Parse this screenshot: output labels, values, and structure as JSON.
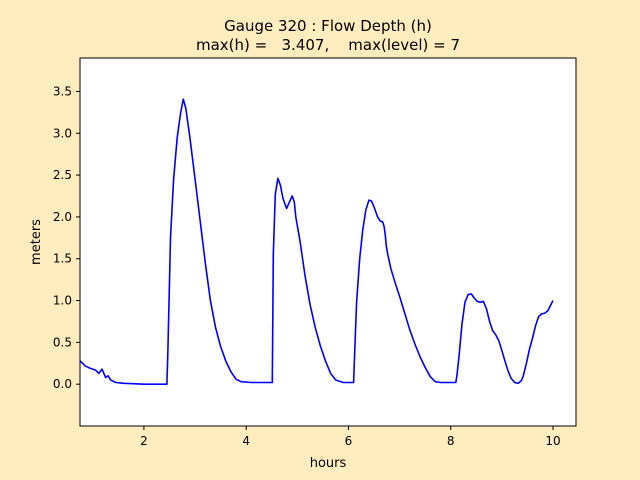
{
  "figure": {
    "title_line1": "Gauge 320 : Flow Depth (h)",
    "title_line2": "max(h) =   3.407,    max(level) = 7"
  },
  "colors": {
    "figure_background": "#ffedc0",
    "axes_background": "#ffffff",
    "line": "#0000ff"
  },
  "chart_data": {
    "type": "line",
    "title": "Gauge 320 : Flow Depth (h)\nmax(h) =   3.407,    max(level) = 7",
    "xlabel": "hours",
    "ylabel": "meters",
    "xlim": [
      0.75,
      10.45
    ],
    "ylim": [
      -0.5,
      3.9
    ],
    "xticks": [
      2,
      4,
      6,
      8,
      10
    ],
    "xtick_labels": [
      "2",
      "4",
      "6",
      "8",
      "10"
    ],
    "yticks": [
      0.0,
      0.5,
      1.0,
      1.5,
      2.0,
      2.5,
      3.0,
      3.5
    ],
    "ytick_labels": [
      "0.0",
      "0.5",
      "1.0",
      "1.5",
      "2.0",
      "2.5",
      "3.0",
      "3.5"
    ],
    "grid": false,
    "series": [
      {
        "color": "#0000ff",
        "x": [
          0.75,
          0.85,
          0.95,
          1.05,
          1.12,
          1.18,
          1.25,
          1.3,
          1.35,
          1.45,
          1.6,
          2.0,
          2.45,
          2.47,
          2.52,
          2.58,
          2.65,
          2.72,
          2.77,
          2.82,
          2.9,
          3.0,
          3.1,
          3.2,
          3.3,
          3.4,
          3.5,
          3.6,
          3.7,
          3.8,
          3.9,
          4.1,
          4.51,
          4.53,
          4.57,
          4.62,
          4.67,
          4.72,
          4.79,
          4.84,
          4.9,
          4.94,
          4.97,
          5.05,
          5.15,
          5.25,
          5.35,
          5.45,
          5.55,
          5.65,
          5.75,
          5.9,
          6.1,
          6.12,
          6.16,
          6.22,
          6.28,
          6.34,
          6.4,
          6.45,
          6.5,
          6.57,
          6.62,
          6.67,
          6.7,
          6.72,
          6.74,
          6.77,
          6.83,
          6.92,
          7.0,
          7.1,
          7.2,
          7.3,
          7.4,
          7.5,
          7.6,
          7.7,
          7.8,
          7.9,
          8.1,
          8.12,
          8.16,
          8.22,
          8.28,
          8.34,
          8.4,
          8.46,
          8.52,
          8.58,
          8.64,
          8.7,
          8.76,
          8.82,
          8.88,
          8.94,
          9.0,
          9.06,
          9.12,
          9.18,
          9.25,
          9.32,
          9.38,
          9.42,
          9.48,
          9.54,
          9.6,
          9.66,
          9.72,
          9.78,
          9.84,
          9.9,
          9.95,
          10.0
        ],
        "y": [
          0.28,
          0.22,
          0.19,
          0.17,
          0.13,
          0.18,
          0.08,
          0.1,
          0.05,
          0.02,
          0.01,
          0.0,
          0.0,
          0.45,
          1.75,
          2.45,
          2.95,
          3.25,
          3.407,
          3.3,
          2.95,
          2.45,
          1.95,
          1.45,
          1.0,
          0.68,
          0.45,
          0.28,
          0.15,
          0.06,
          0.03,
          0.02,
          0.02,
          1.55,
          2.27,
          2.46,
          2.38,
          2.22,
          2.1,
          2.17,
          2.25,
          2.18,
          2.0,
          1.72,
          1.3,
          0.95,
          0.68,
          0.46,
          0.28,
          0.13,
          0.05,
          0.02,
          0.02,
          0.35,
          0.98,
          1.5,
          1.85,
          2.08,
          2.2,
          2.19,
          2.12,
          2.0,
          1.95,
          1.94,
          1.88,
          1.78,
          1.65,
          1.55,
          1.38,
          1.2,
          1.05,
          0.85,
          0.65,
          0.48,
          0.33,
          0.2,
          0.09,
          0.03,
          0.02,
          0.02,
          0.02,
          0.1,
          0.32,
          0.72,
          0.98,
          1.07,
          1.08,
          1.03,
          0.99,
          0.98,
          0.99,
          0.9,
          0.75,
          0.64,
          0.59,
          0.52,
          0.4,
          0.28,
          0.16,
          0.07,
          0.02,
          0.01,
          0.04,
          0.1,
          0.25,
          0.42,
          0.55,
          0.7,
          0.81,
          0.84,
          0.85,
          0.88,
          0.94,
          1.0
        ]
      }
    ]
  }
}
